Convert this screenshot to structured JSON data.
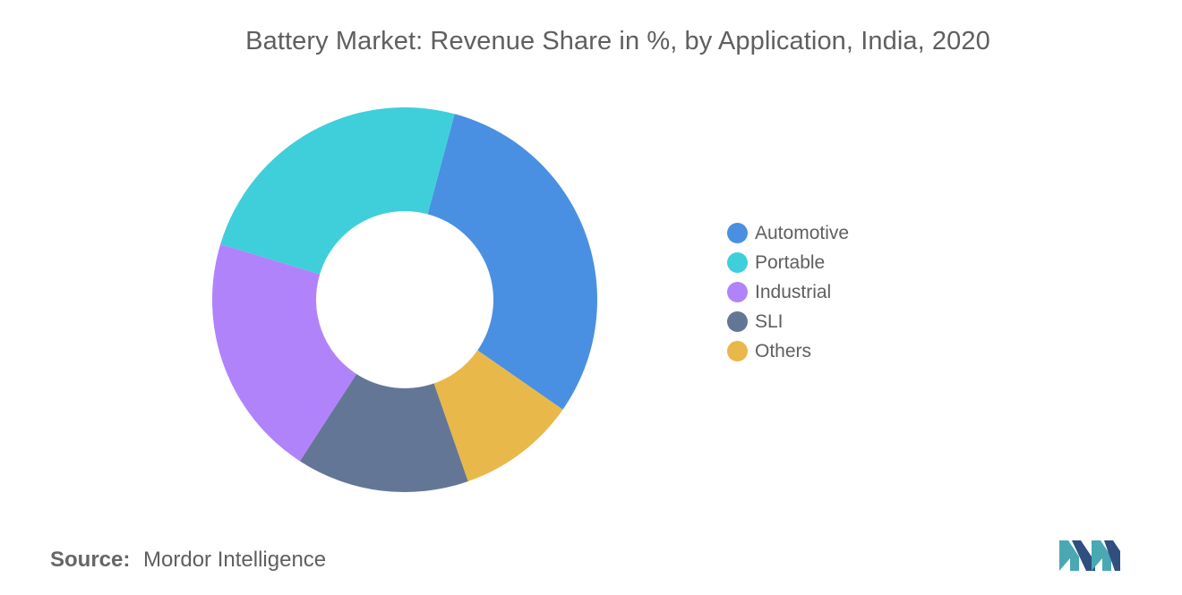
{
  "title": "Battery Market: Revenue Share in %, by Application, India, 2020",
  "chart_data": {
    "type": "pie",
    "variant": "donut",
    "title": "Battery Market: Revenue Share in %, by Application, India, 2020",
    "categories": [
      "Automotive",
      "Others",
      "SLI",
      "Industrial",
      "Portable"
    ],
    "values": [
      30.5,
      10.0,
      14.5,
      20.5,
      24.5
    ],
    "colors": [
      "#4a90e2",
      "#e9b84a",
      "#647696",
      "#b083fa",
      "#3ecfda"
    ],
    "legend": {
      "position": "right",
      "items": [
        {
          "label": "Automotive",
          "color": "#4a90e2"
        },
        {
          "label": "Portable",
          "color": "#3ecfda"
        },
        {
          "label": "Industrial",
          "color": "#b083fa"
        },
        {
          "label": "SLI",
          "color": "#647696"
        },
        {
          "label": "Others",
          "color": "#e9b84a"
        }
      ]
    }
  },
  "source": {
    "label": "Source:",
    "text": "Mordor Intelligence"
  },
  "logo": {
    "icon": "mordor-intelligence-logo-icon",
    "colors": [
      "#4aa8b3",
      "#2f4f7e"
    ]
  }
}
